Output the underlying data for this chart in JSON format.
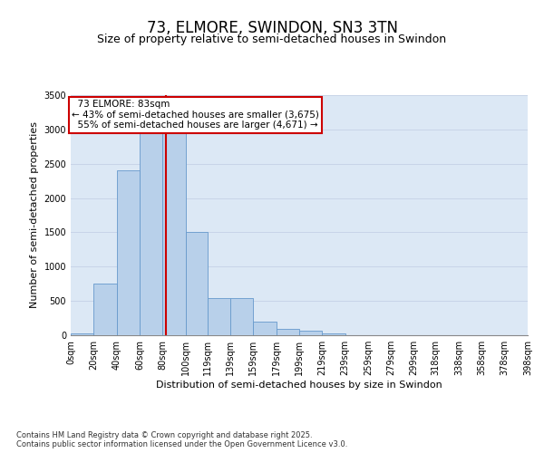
{
  "title": "73, ELMORE, SWINDON, SN3 3TN",
  "subtitle": "Size of property relative to semi-detached houses in Swindon",
  "xlabel": "Distribution of semi-detached houses by size in Swindon",
  "ylabel": "Number of semi-detached properties",
  "property_size": 83,
  "property_label": "73 ELMORE: 83sqm",
  "pct_smaller": 43,
  "pct_larger": 55,
  "count_smaller": 3675,
  "count_larger": 4671,
  "bin_edges": [
    0,
    20,
    40,
    60,
    80,
    100,
    119,
    139,
    159,
    179,
    199,
    219,
    239,
    259,
    279,
    299,
    318,
    338,
    358,
    378,
    398
  ],
  "bin_labels": [
    "0sqm",
    "20sqm",
    "40sqm",
    "60sqm",
    "80sqm",
    "100sqm",
    "119sqm",
    "139sqm",
    "159sqm",
    "179sqm",
    "199sqm",
    "219sqm",
    "239sqm",
    "259sqm",
    "279sqm",
    "299sqm",
    "318sqm",
    "338sqm",
    "358sqm",
    "378sqm",
    "398sqm"
  ],
  "bar_values": [
    30,
    750,
    2400,
    2950,
    2950,
    1500,
    540,
    540,
    200,
    90,
    60,
    20,
    0,
    0,
    0,
    0,
    0,
    0,
    0,
    0
  ],
  "bar_color": "#b8d0ea",
  "bar_edge_color": "#6699cc",
  "vline_color": "#cc0000",
  "annotation_box_color": "#cc0000",
  "grid_color": "#c8d4e8",
  "background_color": "#dce8f5",
  "ylim": [
    0,
    3500
  ],
  "yticks": [
    0,
    500,
    1000,
    1500,
    2000,
    2500,
    3000,
    3500
  ],
  "footer_text": "Contains HM Land Registry data © Crown copyright and database right 2025.\nContains public sector information licensed under the Open Government Licence v3.0.",
  "title_fontsize": 12,
  "subtitle_fontsize": 9,
  "axis_label_fontsize": 8,
  "tick_fontsize": 7,
  "annotation_fontsize": 7.5
}
